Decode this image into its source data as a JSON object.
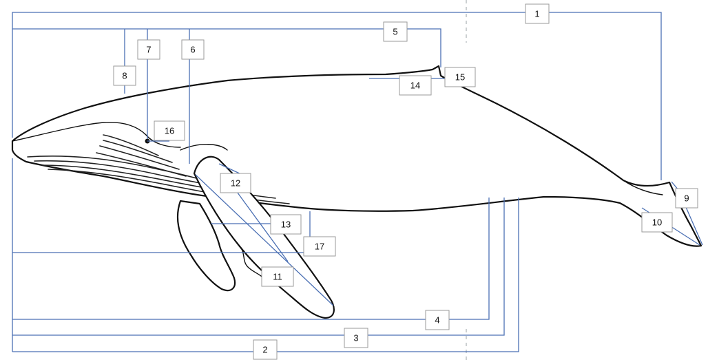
{
  "diagram": {
    "labels": [
      "1",
      "2",
      "3",
      "4",
      "5",
      "6",
      "7",
      "8",
      "9",
      "10",
      "11",
      "12",
      "13",
      "14",
      "15",
      "16",
      "17"
    ]
  }
}
